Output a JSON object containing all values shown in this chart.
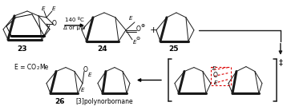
{
  "bg_color": "#ffffff",
  "fig_width": 3.53,
  "fig_height": 1.33,
  "dpi": 100,
  "colors": {
    "black": "#1a1a1a",
    "red": "#dd0000",
    "white": "#ffffff"
  },
  "text": {
    "label23": "23",
    "label24": "24",
    "label25": "25",
    "label26": "26",
    "arrow_top": "140 ºC",
    "arrow_bot": "Δ or μW",
    "plus": "+",
    "E_def": "E = CO",
    "E_def2": "2",
    "E_def3": "Me",
    "poly": "[3]polynorbornane",
    "dagger": "‡",
    "E": "E",
    "O": "O",
    "oplus": "⊕",
    "ominus": "⊖"
  }
}
